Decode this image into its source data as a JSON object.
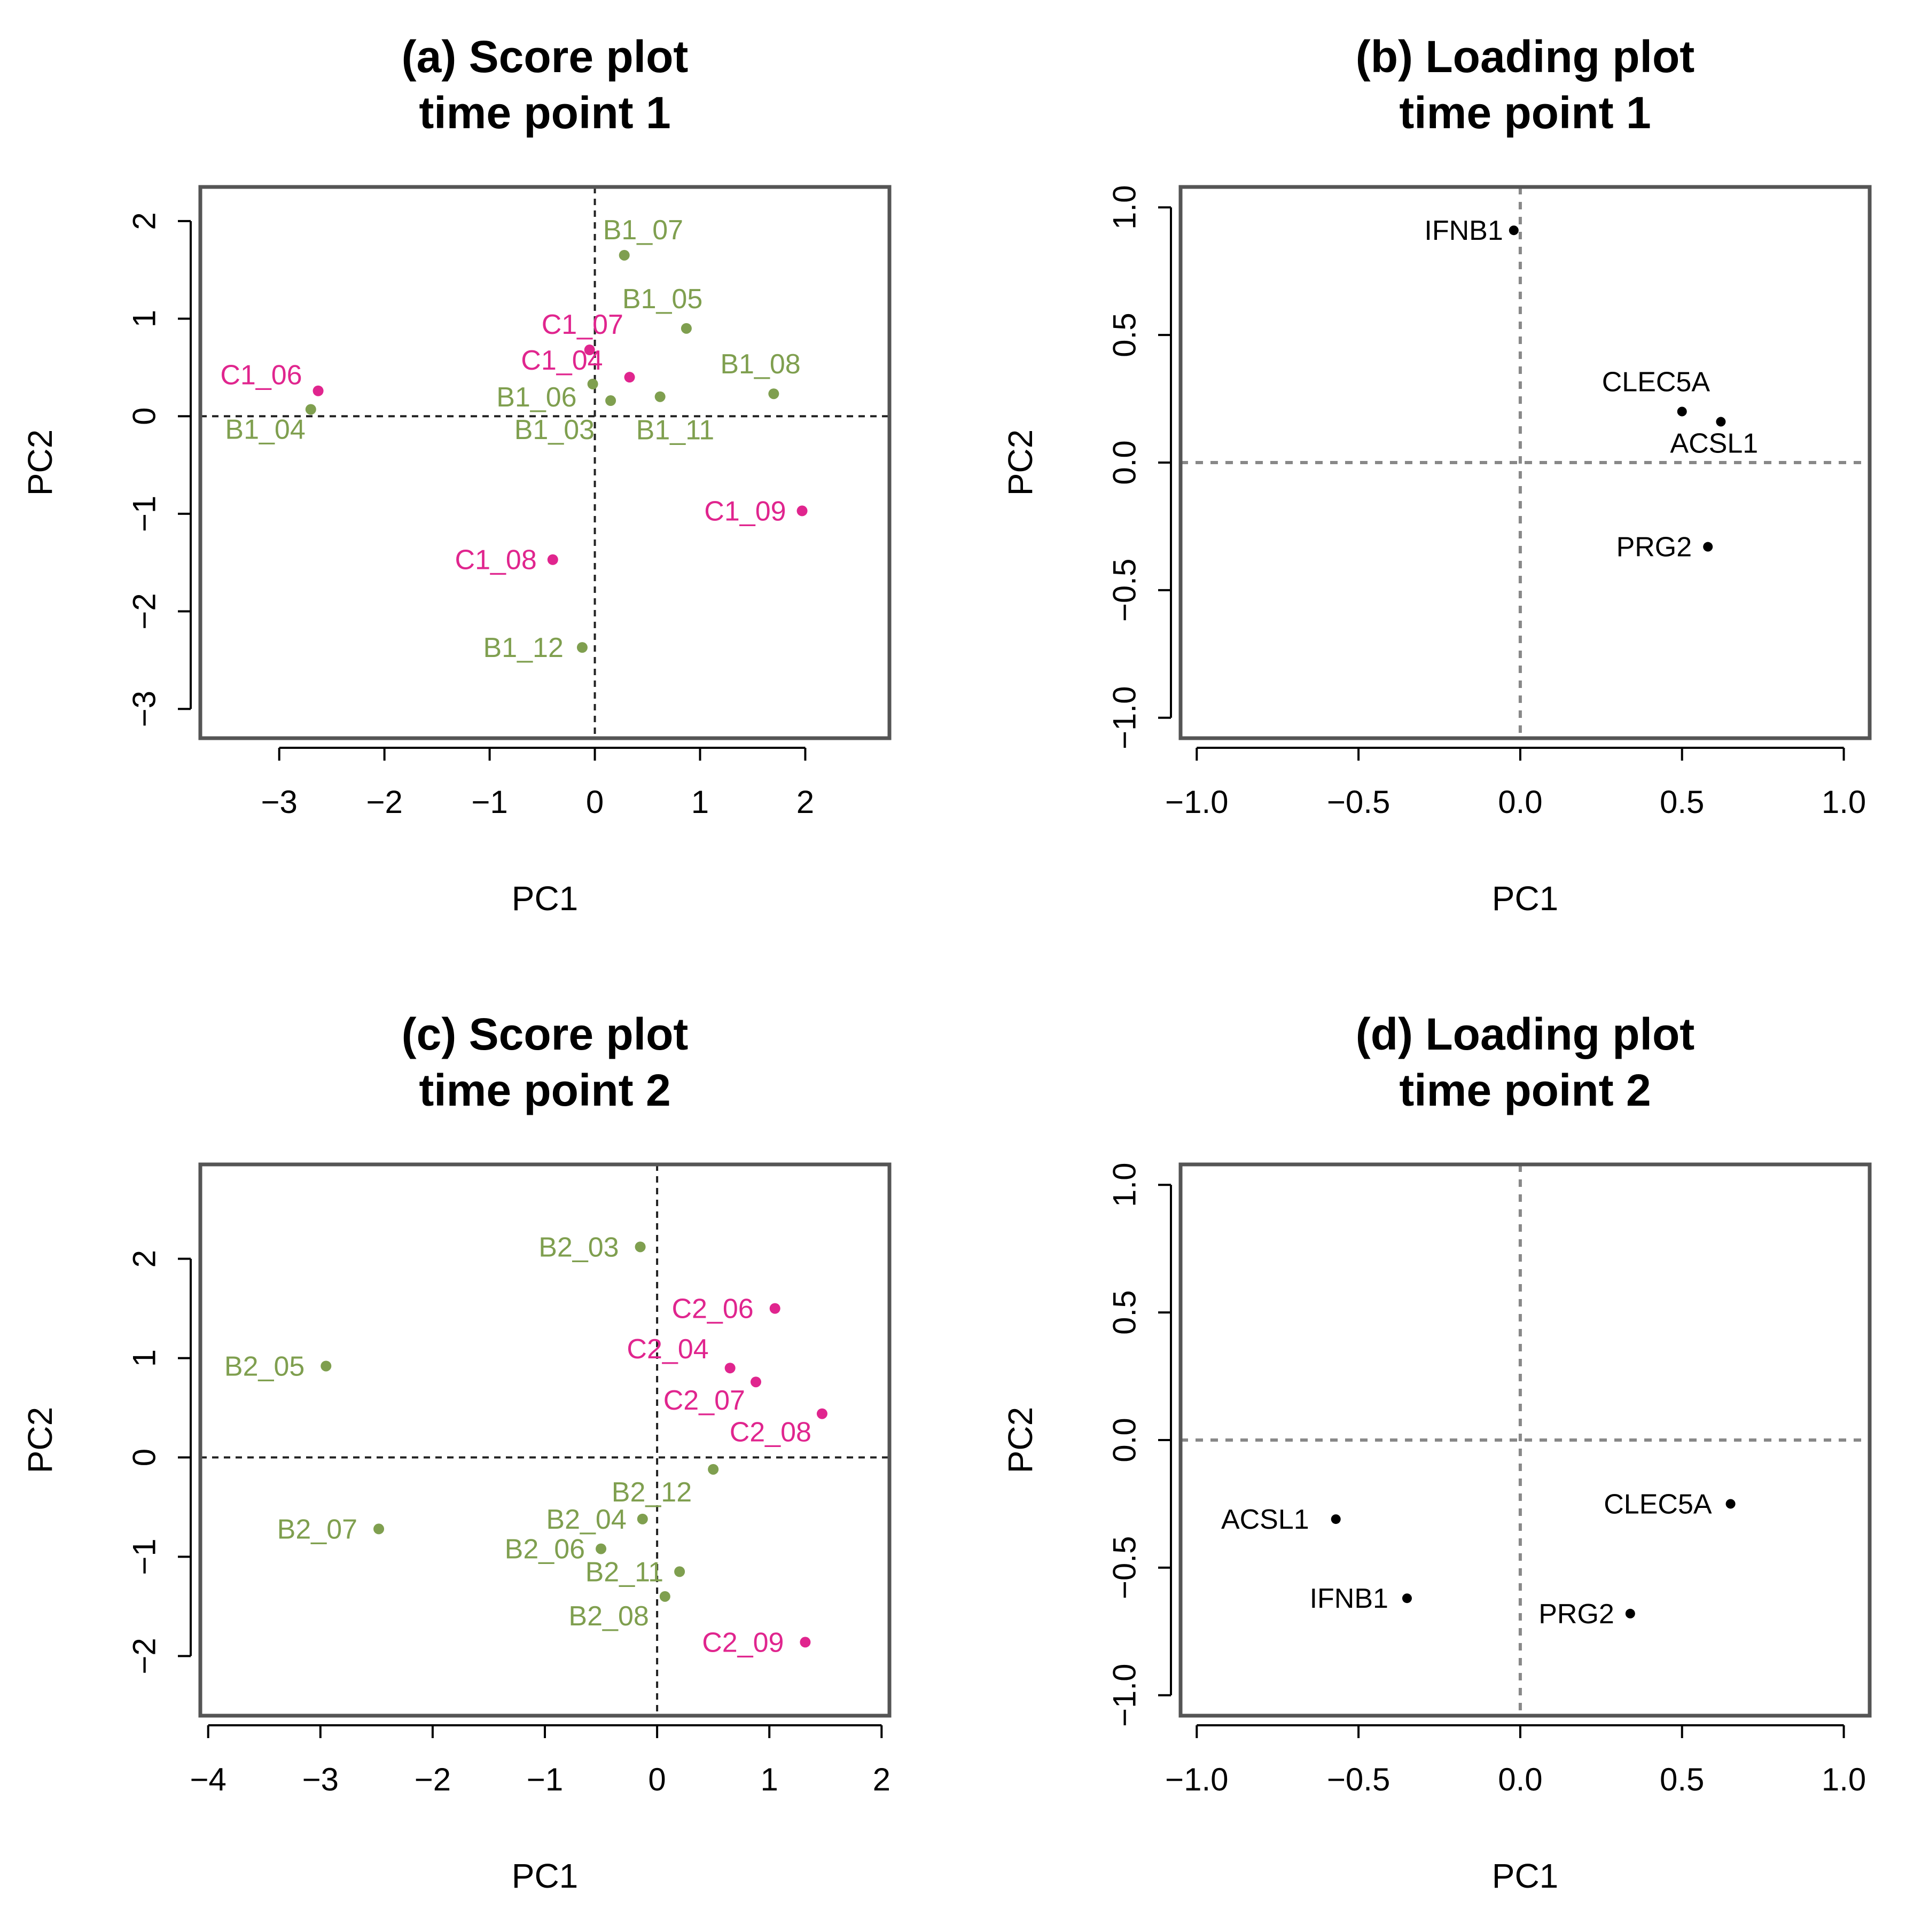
{
  "colors": {
    "group_B": "#7F9F4F",
    "group_C": "#E0258E",
    "loading": "#000000"
  },
  "chart_data": [
    {
      "type": "scatter",
      "title": [
        "(a) Score plot",
        "time point 1"
      ],
      "xlabel": "PC1",
      "ylabel": "PC2",
      "xlim": [
        -3.75,
        2.8
      ],
      "ylim": [
        -3.3,
        2.35
      ],
      "xticks": [
        -3,
        -2,
        -1,
        0,
        1,
        2
      ],
      "yticks": [
        -3,
        -2,
        -1,
        0,
        1,
        2
      ],
      "reference_lines": {
        "x": 0,
        "y": 0
      },
      "points": [
        {
          "label": "B1_07",
          "x": 0.28,
          "y": 1.65,
          "group": "B"
        },
        {
          "label": "B1_05",
          "x": 0.87,
          "y": 0.9,
          "group": "B"
        },
        {
          "label": "C1_07",
          "x": -0.05,
          "y": 0.68,
          "group": "C"
        },
        {
          "label": "C1_06",
          "x": -2.63,
          "y": 0.26,
          "group": "C"
        },
        {
          "label": "C1_04",
          "x": 0.33,
          "y": 0.4,
          "group": "C"
        },
        {
          "label": "B1_08",
          "x": 1.7,
          "y": 0.23,
          "group": "B"
        },
        {
          "label": "B1_06",
          "x": -0.02,
          "y": 0.33,
          "group": "B"
        },
        {
          "label": "B1_03",
          "x": 0.15,
          "y": 0.16,
          "group": "B"
        },
        {
          "label": "B1_11",
          "x": 0.62,
          "y": 0.2,
          "group": "B"
        },
        {
          "label": "B1_04",
          "x": -2.7,
          "y": 0.07,
          "group": "B"
        },
        {
          "label": "C1_09",
          "x": 1.97,
          "y": -0.97,
          "group": "C"
        },
        {
          "label": "C1_08",
          "x": -0.4,
          "y": -1.47,
          "group": "C"
        },
        {
          "label": "B1_12",
          "x": -0.12,
          "y": -2.37,
          "group": "B"
        }
      ]
    },
    {
      "type": "scatter",
      "title": [
        "(b) Loading plot",
        "time point 1"
      ],
      "xlabel": "PC1",
      "ylabel": "PC2",
      "xlim": [
        -1.05,
        1.08
      ],
      "ylim": [
        -1.08,
        1.08
      ],
      "xticks": [
        -1.0,
        -0.5,
        0.0,
        0.5,
        1.0
      ],
      "yticks": [
        -1.0,
        -0.5,
        0.0,
        0.5,
        1.0
      ],
      "reference_lines": {
        "x": 0,
        "y": 0
      },
      "points": [
        {
          "label": "IFNB1",
          "x": -0.02,
          "y": 0.91,
          "group": "L"
        },
        {
          "label": "CLEC5A",
          "x": 0.5,
          "y": 0.2,
          "group": "L"
        },
        {
          "label": "ACSL1",
          "x": 0.62,
          "y": 0.16,
          "group": "L"
        },
        {
          "label": "PRG2",
          "x": 0.58,
          "y": -0.33,
          "group": "L"
        }
      ]
    },
    {
      "type": "scatter",
      "title": [
        "(c) Score plot",
        "time point 2"
      ],
      "xlabel": "PC1",
      "ylabel": "PC2",
      "xlim": [
        -4.07,
        2.07
      ],
      "ylim": [
        -2.6,
        2.95
      ],
      "xticks": [
        -4,
        -3,
        -2,
        -1,
        0,
        1,
        2
      ],
      "yticks": [
        -2,
        -1,
        0,
        1,
        2
      ],
      "reference_lines": {
        "x": 0,
        "y": 0
      },
      "points": [
        {
          "label": "B2_03",
          "x": -0.15,
          "y": 2.12,
          "group": "B"
        },
        {
          "label": "C2_06",
          "x": 1.05,
          "y": 1.5,
          "group": "C"
        },
        {
          "label": "B2_05",
          "x": -2.95,
          "y": 0.92,
          "group": "B"
        },
        {
          "label": "C2_04",
          "x": 0.65,
          "y": 0.9,
          "group": "C"
        },
        {
          "label": "C2_07",
          "x": 0.88,
          "y": 0.76,
          "group": "C"
        },
        {
          "label": "C2_08",
          "x": 1.47,
          "y": 0.44,
          "group": "C"
        },
        {
          "label": "B2_12",
          "x": 0.5,
          "y": -0.12,
          "group": "B"
        },
        {
          "label": "B2_04",
          "x": -0.13,
          "y": -0.62,
          "group": "B"
        },
        {
          "label": "B2_07",
          "x": -2.48,
          "y": -0.72,
          "group": "B"
        },
        {
          "label": "B2_06",
          "x": -0.5,
          "y": -0.92,
          "group": "B"
        },
        {
          "label": "B2_11",
          "x": 0.2,
          "y": -1.15,
          "group": "B"
        },
        {
          "label": "B2_08",
          "x": 0.07,
          "y": -1.4,
          "group": "B"
        },
        {
          "label": "C2_09",
          "x": 1.32,
          "y": -1.86,
          "group": "C"
        }
      ]
    },
    {
      "type": "scatter",
      "title": [
        "(d) Loading plot",
        "time point 2"
      ],
      "xlabel": "PC1",
      "ylabel": "PC2",
      "xlim": [
        -1.05,
        1.08
      ],
      "ylim": [
        -1.08,
        1.08
      ],
      "xticks": [
        -1.0,
        -0.5,
        0.0,
        0.5,
        1.0
      ],
      "yticks": [
        -1.0,
        -0.5,
        0.0,
        0.5,
        1.0
      ],
      "reference_lines": {
        "x": 0,
        "y": 0
      },
      "points": [
        {
          "label": "ACSL1",
          "x": -0.57,
          "y": -0.31,
          "group": "L"
        },
        {
          "label": "CLEC5A",
          "x": 0.65,
          "y": -0.25,
          "group": "L"
        },
        {
          "label": "IFNB1",
          "x": -0.35,
          "y": -0.62,
          "group": "L"
        },
        {
          "label": "PRG2",
          "x": 0.34,
          "y": -0.68,
          "group": "L"
        }
      ]
    }
  ]
}
